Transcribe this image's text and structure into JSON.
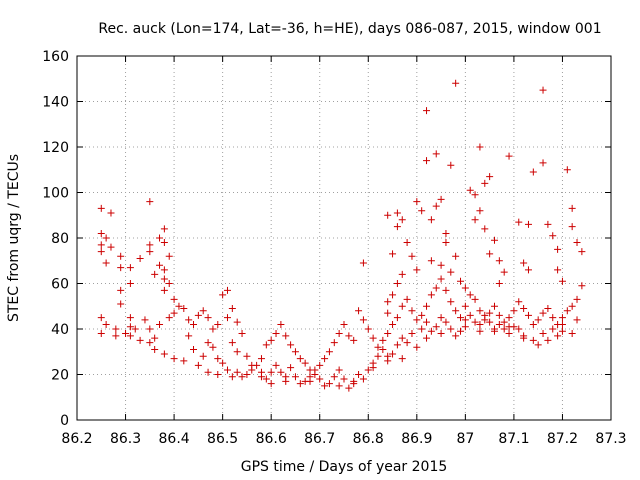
{
  "chart_data": {
    "type": "scatter",
    "title": "Rec. auck (Lon=174, Lat=-36, h=HE), days 086-087, 2015, window 001",
    "xlabel": "GPS time / Days of year 2015",
    "ylabel": "STEC from uqrg / TECUs",
    "xlim": [
      86.2,
      87.3
    ],
    "ylim": [
      0,
      160
    ],
    "xticks": [
      86.2,
      86.3,
      86.4,
      86.5,
      86.6,
      86.7,
      86.8,
      86.9,
      87.0,
      87.1,
      87.2,
      87.3
    ],
    "xtick_labels": [
      "86.2",
      "86.3",
      "86.4",
      "86.5",
      "86.6",
      "86.7",
      "86.8",
      "86.9",
      "87",
      "87.1",
      "87.2",
      "87.3"
    ],
    "yticks": [
      0,
      20,
      40,
      60,
      80,
      100,
      120,
      140,
      160
    ],
    "ytick_labels": [
      "0",
      "20",
      "40",
      "60",
      "80",
      "100",
      "120",
      "140",
      "160"
    ],
    "grid": true,
    "marker": "+",
    "color": "#cc0000",
    "series": [
      {
        "name": "STEC",
        "points": [
          [
            86.25,
            93
          ],
          [
            86.27,
            91
          ],
          [
            86.25,
            82
          ],
          [
            86.26,
            80
          ],
          [
            86.25,
            77
          ],
          [
            86.27,
            76
          ],
          [
            86.25,
            74
          ],
          [
            86.26,
            69
          ],
          [
            86.29,
            72
          ],
          [
            86.29,
            67
          ],
          [
            86.31,
            67
          ],
          [
            86.33,
            71
          ],
          [
            86.35,
            96
          ],
          [
            86.35,
            77
          ],
          [
            86.35,
            74
          ],
          [
            86.37,
            80
          ],
          [
            86.38,
            84
          ],
          [
            86.38,
            78
          ],
          [
            86.39,
            72
          ],
          [
            86.37,
            68
          ],
          [
            86.38,
            66
          ],
          [
            86.36,
            64
          ],
          [
            86.38,
            62
          ],
          [
            86.39,
            60
          ],
          [
            86.38,
            57
          ],
          [
            86.31,
            60
          ],
          [
            86.29,
            57
          ],
          [
            86.29,
            51
          ],
          [
            86.31,
            45
          ],
          [
            86.31,
            41
          ],
          [
            86.31,
            37
          ],
          [
            86.33,
            35
          ],
          [
            86.35,
            34
          ],
          [
            86.36,
            31
          ],
          [
            86.38,
            29
          ],
          [
            86.4,
            27
          ],
          [
            86.42,
            26
          ],
          [
            86.45,
            24
          ],
          [
            86.47,
            21
          ],
          [
            86.49,
            20
          ],
          [
            86.52,
            19
          ],
          [
            86.55,
            20
          ],
          [
            86.58,
            19
          ],
          [
            86.6,
            16
          ],
          [
            86.63,
            17
          ],
          [
            86.66,
            16
          ],
          [
            86.68,
            17
          ],
          [
            86.71,
            15
          ],
          [
            86.74,
            15
          ],
          [
            86.77,
            16
          ],
          [
            86.79,
            18
          ],
          [
            86.81,
            23
          ],
          [
            86.84,
            26
          ],
          [
            86.87,
            27
          ],
          [
            86.9,
            32
          ],
          [
            86.92,
            36
          ],
          [
            86.95,
            38
          ],
          [
            86.98,
            37
          ],
          [
            87.0,
            41
          ],
          [
            87.03,
            39
          ],
          [
            87.06,
            40
          ],
          [
            87.09,
            41
          ],
          [
            87.12,
            37
          ],
          [
            87.15,
            33
          ],
          [
            87.17,
            35
          ],
          [
            87.2,
            39
          ],
          [
            87.22,
            38
          ],
          [
            86.25,
            45
          ],
          [
            86.26,
            42
          ],
          [
            86.28,
            40
          ],
          [
            86.25,
            38
          ],
          [
            86.28,
            37
          ],
          [
            86.3,
            38
          ],
          [
            86.32,
            40
          ],
          [
            86.34,
            44
          ],
          [
            86.35,
            40
          ],
          [
            86.36,
            36
          ],
          [
            86.37,
            42
          ],
          [
            86.39,
            45
          ],
          [
            86.4,
            47
          ],
          [
            86.41,
            50
          ],
          [
            86.4,
            53
          ],
          [
            86.42,
            49
          ],
          [
            86.43,
            44
          ],
          [
            86.44,
            42
          ],
          [
            86.45,
            46
          ],
          [
            86.46,
            48
          ],
          [
            86.47,
            45
          ],
          [
            86.48,
            40
          ],
          [
            86.49,
            42
          ],
          [
            86.5,
            55
          ],
          [
            86.51,
            57
          ],
          [
            86.52,
            49
          ],
          [
            86.51,
            45
          ],
          [
            86.53,
            43
          ],
          [
            86.54,
            38
          ],
          [
            86.52,
            34
          ],
          [
            86.53,
            30
          ],
          [
            86.55,
            28
          ],
          [
            86.56,
            24
          ],
          [
            86.58,
            27
          ],
          [
            86.59,
            33
          ],
          [
            86.6,
            35
          ],
          [
            86.61,
            38
          ],
          [
            86.62,
            42
          ],
          [
            86.63,
            37
          ],
          [
            86.64,
            33
          ],
          [
            86.65,
            30
          ],
          [
            86.66,
            27
          ],
          [
            86.67,
            25
          ],
          [
            86.68,
            22
          ],
          [
            86.69,
            20
          ],
          [
            86.7,
            24
          ],
          [
            86.71,
            27
          ],
          [
            86.72,
            30
          ],
          [
            86.73,
            34
          ],
          [
            86.74,
            38
          ],
          [
            86.75,
            42
          ],
          [
            86.76,
            37
          ],
          [
            86.77,
            35
          ],
          [
            86.78,
            48
          ],
          [
            86.79,
            44
          ],
          [
            86.8,
            40
          ],
          [
            86.81,
            36
          ],
          [
            86.82,
            32
          ],
          [
            86.83,
            35
          ],
          [
            86.84,
            38
          ],
          [
            86.85,
            42
          ],
          [
            86.86,
            45
          ],
          [
            86.87,
            50
          ],
          [
            86.88,
            53
          ],
          [
            86.89,
            48
          ],
          [
            86.9,
            44
          ],
          [
            86.91,
            46
          ],
          [
            86.92,
            50
          ],
          [
            86.93,
            55
          ],
          [
            86.94,
            58
          ],
          [
            86.95,
            62
          ],
          [
            86.96,
            57
          ],
          [
            86.97,
            52
          ],
          [
            86.98,
            48
          ],
          [
            86.99,
            45
          ],
          [
            87.0,
            50
          ],
          [
            87.01,
            55
          ],
          [
            87.02,
            53
          ],
          [
            87.03,
            48
          ],
          [
            87.04,
            44
          ],
          [
            87.05,
            47
          ],
          [
            87.06,
            50
          ],
          [
            87.07,
            46
          ],
          [
            87.08,
            43
          ],
          [
            87.09,
            45
          ],
          [
            87.1,
            48
          ],
          [
            87.11,
            52
          ],
          [
            87.12,
            49
          ],
          [
            87.13,
            46
          ],
          [
            87.14,
            42
          ],
          [
            87.15,
            44
          ],
          [
            87.16,
            47
          ],
          [
            87.17,
            49
          ],
          [
            87.18,
            45
          ],
          [
            87.19,
            42
          ],
          [
            87.2,
            45
          ],
          [
            87.21,
            48
          ],
          [
            87.22,
            50
          ],
          [
            87.23,
            44
          ],
          [
            86.79,
            69
          ],
          [
            86.84,
            90
          ],
          [
            86.86,
            91
          ],
          [
            86.86,
            85
          ],
          [
            86.87,
            88
          ],
          [
            86.88,
            78
          ],
          [
            86.9,
            96
          ],
          [
            86.91,
            92
          ],
          [
            86.89,
            72
          ],
          [
            86.9,
            66
          ],
          [
            86.87,
            64
          ],
          [
            86.86,
            60
          ],
          [
            86.85,
            55
          ],
          [
            86.84,
            52
          ],
          [
            86.84,
            47
          ],
          [
            86.85,
            73
          ],
          [
            86.92,
            114
          ],
          [
            86.92,
            136
          ],
          [
            86.94,
            117
          ],
          [
            86.95,
            97
          ],
          [
            86.94,
            94
          ],
          [
            86.93,
            88
          ],
          [
            86.96,
            82
          ],
          [
            86.96,
            78
          ],
          [
            86.93,
            70
          ],
          [
            86.95,
            68
          ],
          [
            86.97,
            112
          ],
          [
            86.98,
            148
          ],
          [
            86.98,
            72
          ],
          [
            86.97,
            65
          ],
          [
            86.99,
            61
          ],
          [
            87.0,
            58
          ],
          [
            87.01,
            101
          ],
          [
            87.02,
            99
          ],
          [
            87.03,
            120
          ],
          [
            87.04,
            104
          ],
          [
            87.03,
            92
          ],
          [
            87.02,
            88
          ],
          [
            87.04,
            84
          ],
          [
            87.05,
            107
          ],
          [
            87.06,
            79
          ],
          [
            87.05,
            73
          ],
          [
            87.07,
            70
          ],
          [
            87.08,
            65
          ],
          [
            87.07,
            60
          ],
          [
            87.09,
            116
          ],
          [
            87.11,
            87
          ],
          [
            87.12,
            69
          ],
          [
            87.13,
            66
          ],
          [
            87.13,
            86
          ],
          [
            87.14,
            109
          ],
          [
            87.16,
            113
          ],
          [
            87.16,
            145
          ],
          [
            87.17,
            86
          ],
          [
            87.18,
            81
          ],
          [
            87.19,
            75
          ],
          [
            87.19,
            66
          ],
          [
            87.2,
            61
          ],
          [
            87.21,
            110
          ],
          [
            87.22,
            93
          ],
          [
            87.22,
            85
          ],
          [
            87.23,
            78
          ],
          [
            87.24,
            74
          ],
          [
            87.24,
            59
          ],
          [
            87.23,
            53
          ],
          [
            86.43,
            37
          ],
          [
            86.44,
            31
          ],
          [
            86.46,
            28
          ],
          [
            86.47,
            34
          ],
          [
            86.48,
            32
          ],
          [
            86.49,
            27
          ],
          [
            86.5,
            25
          ],
          [
            86.51,
            22
          ],
          [
            86.53,
            21
          ],
          [
            86.54,
            19
          ],
          [
            86.56,
            22
          ],
          [
            86.57,
            24
          ],
          [
            86.58,
            21
          ],
          [
            86.59,
            18
          ],
          [
            86.6,
            21
          ],
          [
            86.61,
            24
          ],
          [
            86.62,
            21
          ],
          [
            86.63,
            19
          ],
          [
            86.64,
            23
          ],
          [
            86.65,
            19
          ],
          [
            86.67,
            17
          ],
          [
            86.68,
            19
          ],
          [
            86.69,
            22
          ],
          [
            86.7,
            18
          ],
          [
            86.72,
            16
          ],
          [
            86.73,
            19
          ],
          [
            86.74,
            22
          ],
          [
            86.75,
            18
          ],
          [
            86.76,
            14
          ],
          [
            86.77,
            17
          ],
          [
            86.78,
            20
          ],
          [
            86.8,
            22
          ],
          [
            86.81,
            25
          ],
          [
            86.82,
            28
          ],
          [
            86.83,
            31
          ],
          [
            86.84,
            28
          ],
          [
            86.85,
            29
          ],
          [
            86.86,
            33
          ],
          [
            86.87,
            36
          ],
          [
            86.88,
            34
          ],
          [
            86.89,
            38
          ],
          [
            86.91,
            40
          ],
          [
            86.92,
            43
          ],
          [
            86.93,
            39
          ],
          [
            86.94,
            41
          ],
          [
            86.95,
            45
          ],
          [
            86.96,
            43
          ],
          [
            86.97,
            40
          ],
          [
            86.99,
            39
          ],
          [
            87.0,
            44
          ],
          [
            87.01,
            46
          ],
          [
            87.02,
            43
          ],
          [
            87.03,
            42
          ],
          [
            87.04,
            46
          ],
          [
            87.05,
            43
          ],
          [
            87.06,
            39
          ],
          [
            87.07,
            42
          ],
          [
            87.08,
            40
          ],
          [
            87.09,
            38
          ],
          [
            87.1,
            41
          ],
          [
            87.11,
            40
          ],
          [
            87.12,
            36
          ],
          [
            87.14,
            35
          ],
          [
            87.16,
            38
          ],
          [
            87.18,
            40
          ],
          [
            87.19,
            37
          ],
          [
            87.2,
            42
          ]
        ]
      }
    ]
  }
}
